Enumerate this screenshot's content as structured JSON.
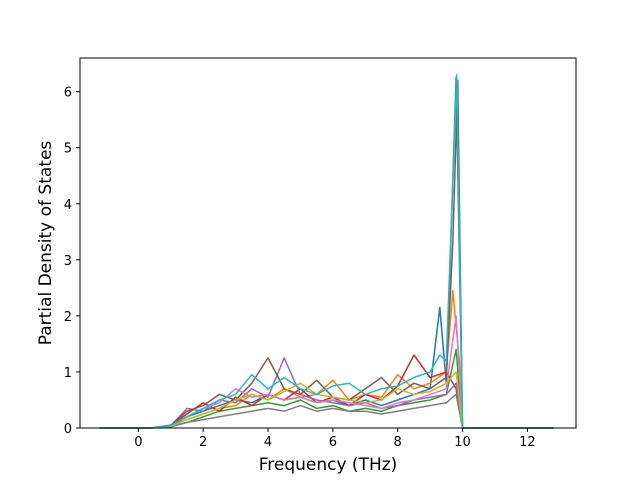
{
  "chart_data": {
    "type": "line",
    "title": "",
    "xlabel": "Frequency (THz)",
    "ylabel": "Partial Density of States",
    "xlim": [
      -1.8,
      13.5
    ],
    "ylim": [
      0,
      6.6
    ],
    "xticks": [
      0,
      2,
      4,
      6,
      8,
      10,
      12
    ],
    "yticks": [
      0,
      1,
      2,
      3,
      4,
      5,
      6
    ],
    "grid": false,
    "legend": "none",
    "colors": [
      "#1f77b4",
      "#ff7f0e",
      "#2ca02c",
      "#d62728",
      "#9467bd",
      "#8c564b",
      "#e377c2",
      "#7f7f7f",
      "#bcbd22",
      "#17becf"
    ],
    "series": [
      {
        "x": [
          -1.2,
          0.4,
          1.0,
          1.5,
          2.0,
          2.5,
          3.0,
          3.5,
          4.0,
          4.5,
          5.0,
          5.5,
          6.0,
          6.5,
          7.0,
          7.5,
          8.0,
          8.5,
          9.0,
          9.3,
          9.5,
          9.8,
          10.0,
          12.8
        ],
        "y": [
          0,
          0,
          0.05,
          0.2,
          0.3,
          0.4,
          0.5,
          0.45,
          0.6,
          0.5,
          0.55,
          0.45,
          0.5,
          0.4,
          0.5,
          0.4,
          0.5,
          0.6,
          0.7,
          2.15,
          0.8,
          6.25,
          0,
          0
        ]
      },
      {
        "x": [
          -1.2,
          0.4,
          1.0,
          1.5,
          2.0,
          2.5,
          3.0,
          3.5,
          4.0,
          4.5,
          5.0,
          5.5,
          6.0,
          6.5,
          7.0,
          7.5,
          8.0,
          8.5,
          9.0,
          9.5,
          9.7,
          9.9,
          10.0,
          12.8
        ],
        "y": [
          0,
          0,
          0.04,
          0.15,
          0.25,
          0.35,
          0.4,
          0.6,
          0.5,
          0.7,
          0.55,
          0.6,
          0.85,
          0.5,
          0.6,
          0.55,
          0.95,
          0.7,
          0.8,
          1.0,
          2.45,
          1.2,
          0,
          0
        ]
      },
      {
        "x": [
          -1.2,
          0.4,
          1.0,
          1.5,
          2.0,
          2.5,
          3.0,
          3.5,
          4.0,
          4.5,
          5.0,
          5.5,
          6.0,
          6.5,
          7.0,
          7.5,
          8.0,
          8.5,
          9.0,
          9.5,
          9.8,
          10.0,
          12.8
        ],
        "y": [
          0,
          0,
          0.03,
          0.1,
          0.2,
          0.3,
          0.35,
          0.4,
          0.45,
          0.4,
          0.5,
          0.35,
          0.4,
          0.3,
          0.35,
          0.3,
          0.4,
          0.45,
          0.5,
          0.6,
          1.4,
          0,
          0
        ]
      },
      {
        "x": [
          -1.2,
          0.4,
          1.0,
          1.5,
          2.0,
          2.5,
          3.0,
          3.5,
          4.0,
          4.5,
          5.0,
          5.5,
          6.0,
          6.5,
          7.0,
          7.5,
          8.0,
          8.5,
          9.0,
          9.5,
          9.8,
          10.0,
          12.8
        ],
        "y": [
          0,
          0,
          0.05,
          0.25,
          0.45,
          0.3,
          0.55,
          0.4,
          0.6,
          0.5,
          0.7,
          0.45,
          0.55,
          0.4,
          0.6,
          0.5,
          0.75,
          1.3,
          0.9,
          1.0,
          0.7,
          0,
          0
        ]
      },
      {
        "x": [
          -1.2,
          0.4,
          1.0,
          1.5,
          2.0,
          2.5,
          3.0,
          3.5,
          4.0,
          4.5,
          5.0,
          5.5,
          6.0,
          6.5,
          7.0,
          7.5,
          8.0,
          8.5,
          9.0,
          9.5,
          9.8,
          10.0,
          12.8
        ],
        "y": [
          0,
          0,
          0.04,
          0.35,
          0.3,
          0.5,
          0.45,
          0.7,
          0.55,
          1.25,
          0.6,
          0.5,
          0.45,
          0.4,
          0.45,
          0.35,
          0.4,
          0.5,
          0.55,
          0.6,
          0.8,
          0,
          0
        ]
      },
      {
        "x": [
          -1.2,
          0.4,
          1.0,
          1.5,
          2.0,
          2.5,
          3.0,
          3.5,
          4.0,
          4.5,
          5.0,
          5.5,
          6.0,
          6.5,
          7.0,
          7.5,
          8.0,
          8.5,
          9.0,
          9.5,
          9.7,
          9.85,
          10.0,
          12.8
        ],
        "y": [
          0,
          0,
          0.05,
          0.3,
          0.4,
          0.6,
          0.5,
          0.8,
          1.25,
          0.7,
          0.6,
          0.85,
          0.55,
          0.5,
          0.7,
          0.9,
          0.6,
          0.8,
          0.7,
          0.9,
          3.3,
          6.2,
          0,
          0
        ]
      },
      {
        "x": [
          -1.2,
          0.4,
          1.0,
          1.5,
          2.0,
          2.5,
          3.0,
          3.5,
          4.0,
          4.5,
          5.0,
          5.5,
          6.0,
          6.5,
          7.0,
          7.5,
          8.0,
          8.5,
          9.0,
          9.5,
          9.8,
          10.0,
          12.8
        ],
        "y": [
          0,
          0,
          0.04,
          0.2,
          0.35,
          0.45,
          0.7,
          0.55,
          0.6,
          0.5,
          0.55,
          0.45,
          0.5,
          0.45,
          0.4,
          0.35,
          0.45,
          0.5,
          0.6,
          0.7,
          2.0,
          0,
          0
        ]
      },
      {
        "x": [
          -1.2,
          0.4,
          1.0,
          1.5,
          2.0,
          2.5,
          3.0,
          3.5,
          4.0,
          4.5,
          5.0,
          5.5,
          6.0,
          6.5,
          7.0,
          7.5,
          8.0,
          8.5,
          9.0,
          9.5,
          9.8,
          10.0,
          12.8
        ],
        "y": [
          0,
          0,
          0.02,
          0.1,
          0.15,
          0.2,
          0.25,
          0.3,
          0.35,
          0.3,
          0.4,
          0.3,
          0.35,
          0.3,
          0.3,
          0.25,
          0.3,
          0.35,
          0.4,
          0.45,
          0.6,
          0,
          0
        ]
      },
      {
        "x": [
          -1.2,
          0.4,
          1.0,
          1.5,
          2.0,
          2.5,
          3.0,
          3.5,
          4.0,
          4.5,
          5.0,
          5.5,
          6.0,
          6.5,
          7.0,
          7.5,
          8.0,
          8.5,
          9.0,
          9.5,
          9.8,
          10.0,
          12.8
        ],
        "y": [
          0,
          0,
          0.03,
          0.15,
          0.25,
          0.35,
          0.5,
          0.6,
          0.5,
          0.65,
          0.8,
          0.6,
          0.55,
          0.5,
          0.45,
          0.5,
          0.7,
          0.6,
          0.65,
          0.8,
          1.0,
          0,
          0
        ]
      },
      {
        "x": [
          -1.2,
          0.4,
          1.0,
          1.5,
          2.0,
          2.5,
          3.0,
          3.5,
          4.0,
          4.5,
          5.0,
          5.5,
          6.0,
          6.5,
          7.0,
          7.5,
          8.0,
          8.5,
          9.0,
          9.3,
          9.5,
          9.82,
          10.0,
          12.8
        ],
        "y": [
          0,
          0,
          0.04,
          0.2,
          0.35,
          0.5,
          0.6,
          0.95,
          0.7,
          0.9,
          0.7,
          0.6,
          0.75,
          0.8,
          0.6,
          0.7,
          0.75,
          0.9,
          1.0,
          1.3,
          1.2,
          6.3,
          0,
          0
        ]
      }
    ]
  }
}
